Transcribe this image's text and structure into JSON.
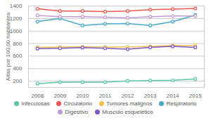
{
  "chart_data": {
    "type": "line",
    "ylabel": "Altas por 100.00 habitantes",
    "x": [
      2008,
      2009,
      2010,
      2011,
      2012,
      2013,
      2014,
      2015
    ],
    "xlim": [
      2007.6,
      2015.4
    ],
    "xticks": [
      2008,
      2009,
      2010,
      2011,
      2012,
      2013,
      2014,
      2015
    ],
    "ylim": [
      100,
      1400
    ],
    "yticks": [
      200,
      400,
      600,
      800,
      1000,
      1200,
      1400
    ],
    "grid": true,
    "legend": "bottom",
    "marker": "circle",
    "series": [
      {
        "name": "Infecciosas",
        "color": "#5cc8a0",
        "values": [
          160,
          185,
          185,
          185,
          205,
          210,
          215,
          235
        ]
      },
      {
        "name": "Circulatorio",
        "color": "#e8584f",
        "values": [
          1355,
          1320,
          1320,
          1310,
          1320,
          1340,
          1350,
          1360
        ]
      },
      {
        "name": "Tumores malignos",
        "color": "#f2c14e",
        "values": [
          740,
          745,
          750,
          745,
          745,
          755,
          770,
          770
        ]
      },
      {
        "name": "Respiratorio",
        "color": "#4aa8c9",
        "values": [
          1150,
          1200,
          1090,
          1115,
          1120,
          1090,
          1150,
          1255
        ]
      },
      {
        "name": "Digestivo",
        "color": "#c39bd3",
        "values": [
          1250,
          1230,
          1230,
          1220,
          1210,
          1230,
          1240,
          1240
        ]
      },
      {
        "name": "Músculo esquelético",
        "color": "#7e57c2",
        "values": [
          720,
          725,
          735,
          725,
          710,
          740,
          755,
          740
        ]
      }
    ]
  }
}
